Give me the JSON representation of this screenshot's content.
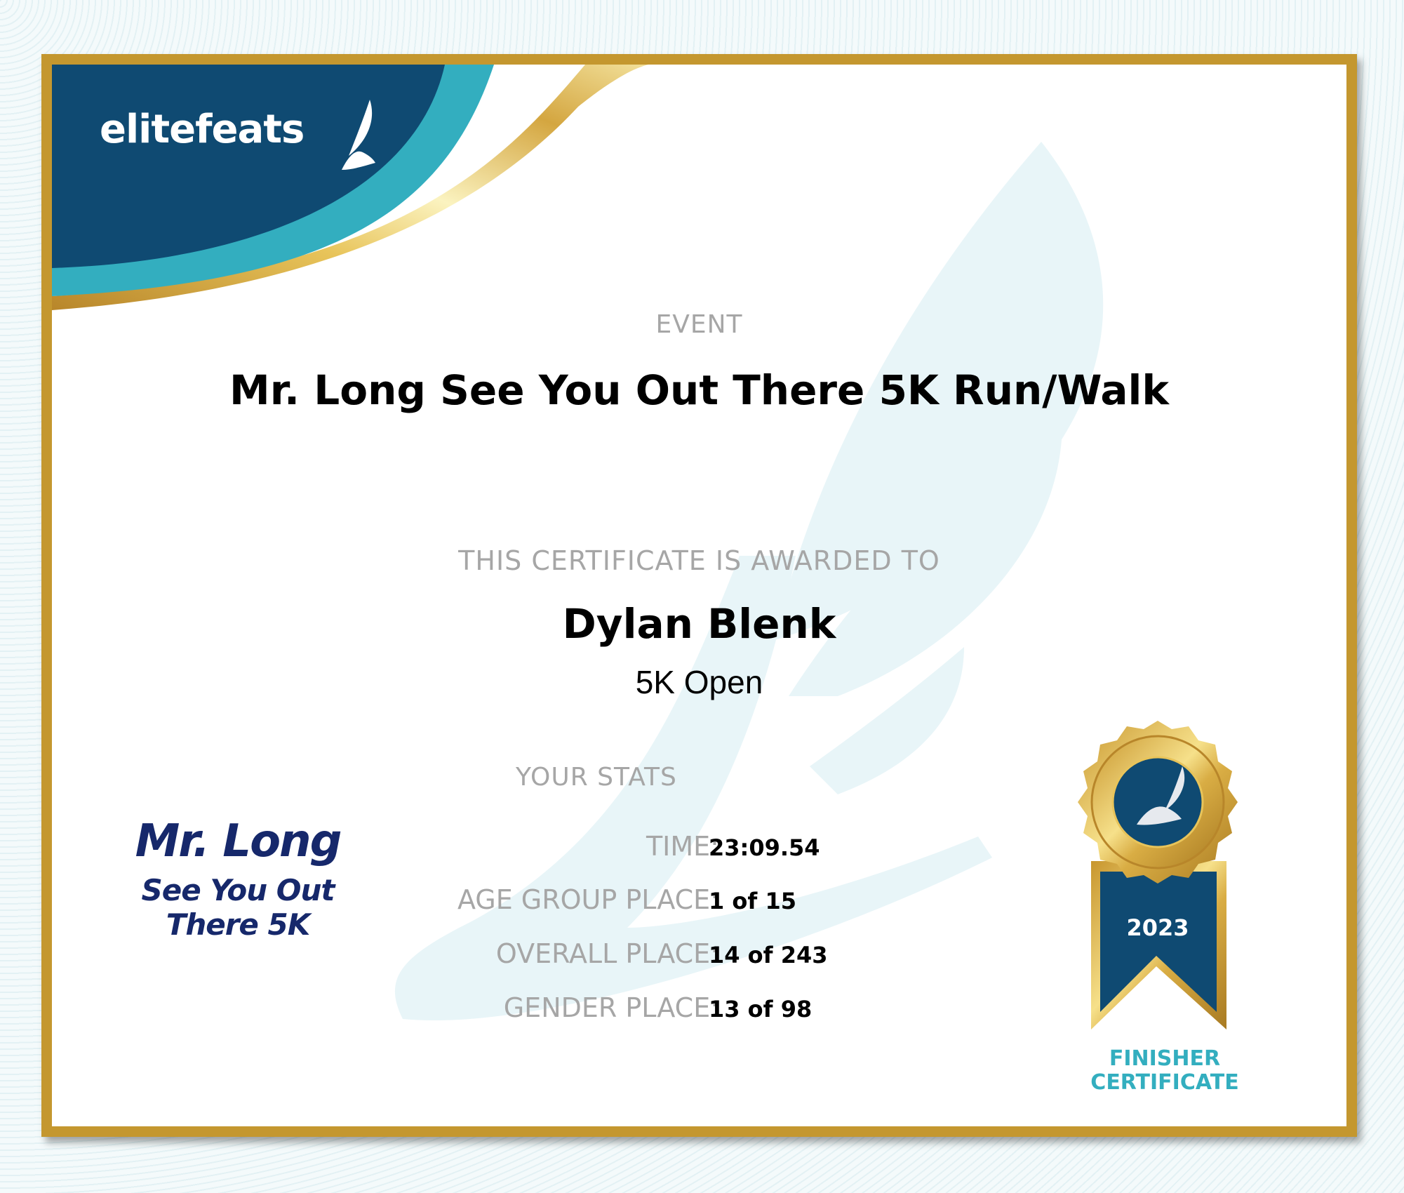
{
  "brand": {
    "name": "elitefeats",
    "colors": {
      "navy": "#0f4a72",
      "teal": "#33aebf",
      "gold": "#c4972f"
    }
  },
  "event": {
    "label": "EVENT",
    "title": "Mr. Long See You Out There 5K Run/Walk"
  },
  "award": {
    "label": "THIS CERTIFICATE IS AWARDED TO",
    "name": "Dylan Blenk",
    "division": "5K Open"
  },
  "stats": {
    "label": "YOUR STATS",
    "rows": [
      {
        "label": "TIME:",
        "value": "23:09.54"
      },
      {
        "label": "AGE GROUP PLACE:",
        "value": "1 of 15"
      },
      {
        "label": "OVERALL PLACE:",
        "value": "14 of 243"
      },
      {
        "label": "GENDER PLACE:",
        "value": "13 of 98"
      }
    ]
  },
  "event_logo": {
    "line1": "Mr. Long",
    "line2": "See You Out",
    "line3": "There 5K"
  },
  "badge": {
    "year": "2023",
    "line1": "FINISHER",
    "line2": "CERTIFICATE",
    "icon": "winged-foot-icon"
  }
}
